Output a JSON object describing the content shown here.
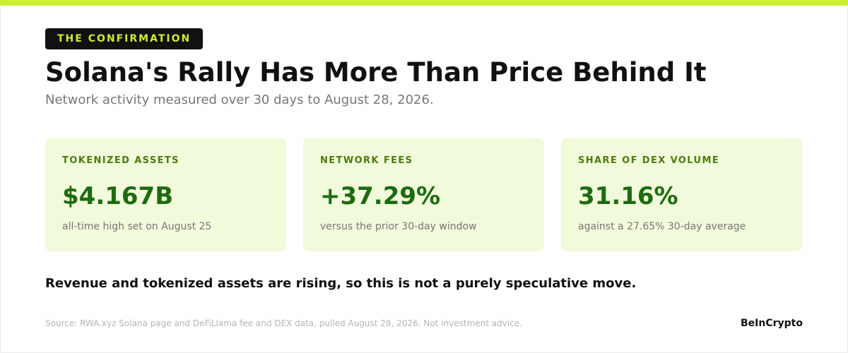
{
  "kicker": "THE CONFIRMATION",
  "headline": "Solana's Rally Has More Than Price Behind It",
  "subtitle": "Network activity measured over 30 days to August 28, 2026.",
  "cards": [
    {
      "label": "TOKENIZED ASSETS",
      "value": "$4.167B",
      "note": "all-time high set on August 25"
    },
    {
      "label": "NETWORK FEES",
      "value": "+37.29%",
      "note": "versus the prior 30-day window"
    },
    {
      "label": "SHARE OF DEX VOLUME",
      "value": "31.16%",
      "note": "against a 27.65% 30-day average"
    }
  ],
  "conclusion": "Revenue and tokenized assets are rising, so this is not a purely speculative move.",
  "footer": {
    "source": "Source: RWA.xyz Solana page and DeFiLlama fee and DEX data, pulled August 28, 2026. Not investment advice.",
    "brand": "BeInCrypto"
  },
  "colors": {
    "accent": "#ccee33",
    "card_background": "#f1fada",
    "value_green": "#1e6b12",
    "label_green": "#4d7a0f"
  }
}
